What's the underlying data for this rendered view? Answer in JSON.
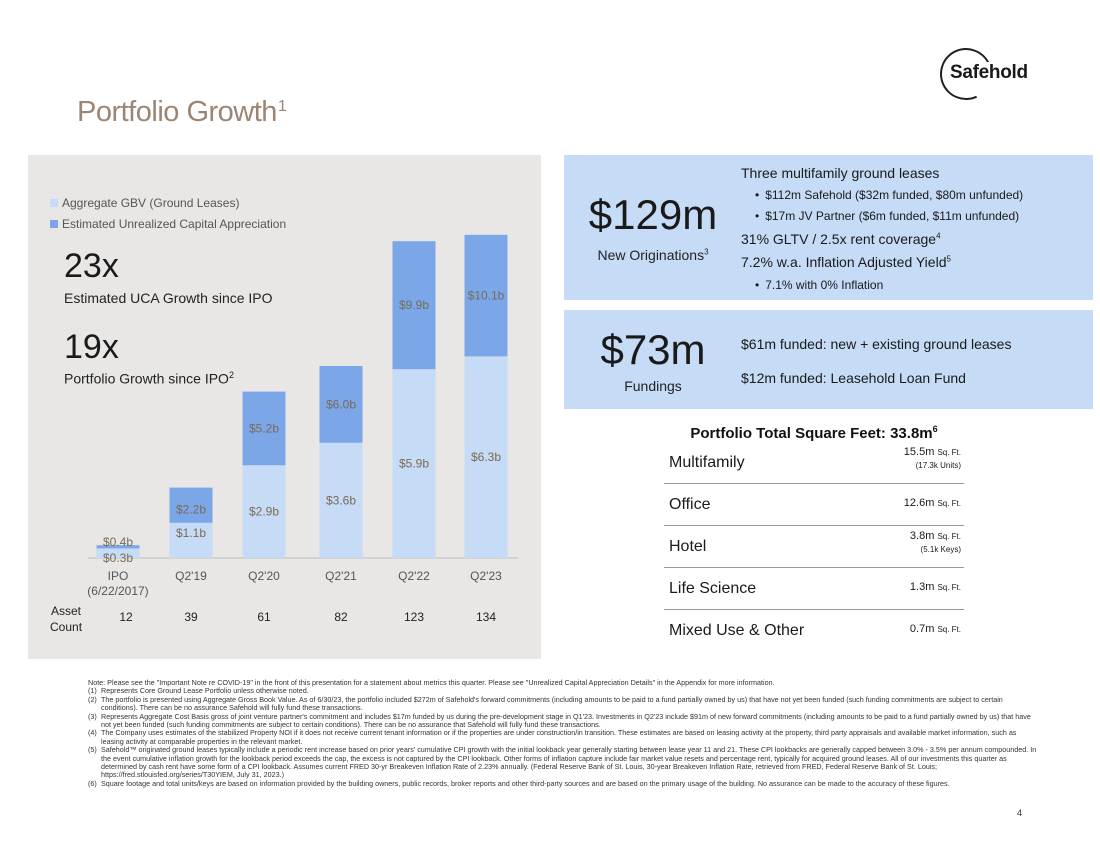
{
  "logo": {
    "text": "Safehold"
  },
  "title": {
    "text": "Portfolio Growth",
    "sup": "1"
  },
  "legend": [
    {
      "label": "Aggregate GBV (Ground Leases)",
      "color": "#c6dbf6"
    },
    {
      "label": "Estimated Unrealized Capital Appreciation",
      "color": "#7ba7e9"
    }
  ],
  "stats": [
    {
      "value": "23x",
      "label": "Estimated UCA Growth since IPO",
      "sup": ""
    },
    {
      "value": "19x",
      "label": "Portfolio Growth since IPO",
      "sup": "2"
    }
  ],
  "chart_data": {
    "type": "bar",
    "stacked": true,
    "categories": [
      "IPO\n(6/22/2017)",
      "Q2'19",
      "Q2'20",
      "Q2'21",
      "Q2'22",
      "Q2'23"
    ],
    "series": [
      {
        "name": "Aggregate GBV (Ground Leases)",
        "color": "#c6dbf6",
        "values": [
          0.3,
          1.1,
          2.9,
          3.6,
          5.9,
          6.3
        ],
        "labels": [
          "$0.3b",
          "$1.1b",
          "$2.9b",
          "$3.6b",
          "$5.9b",
          "$6.3b"
        ]
      },
      {
        "name": "Estimated Unrealized Capital Appreciation",
        "color": "#7ba7e9",
        "values": [
          0.1,
          1.1,
          2.3,
          2.4,
          4.0,
          3.8
        ],
        "labels": [
          "$0.4b",
          "$2.2b",
          "$5.2b",
          "$6.0b",
          "$9.9b",
          "$10.1b"
        ]
      }
    ],
    "asset_count_label": "Asset\nCount",
    "asset_counts": [
      "12",
      "39",
      "61",
      "82",
      "123",
      "134"
    ],
    "ylim": [
      0,
      10.5
    ]
  },
  "originations": {
    "big": "$129m",
    "sub": "New Originations",
    "sub_sup": "3",
    "headline": "Three multifamily ground leases",
    "bullets": [
      "$112m Safehold ($32m funded, $80m unfunded)",
      "$17m JV Partner ($6m funded, $11m unfunded)"
    ],
    "line1": "31% GLTV / 2.5x rent coverage",
    "line1_sup": "4",
    "line2": "7.2% w.a. Inflation Adjusted Yield",
    "line2_sup": "5",
    "bullet3": "7.1% with 0% Inflation"
  },
  "fundings": {
    "big": "$73m",
    "sub": "Fundings",
    "line1": "$61m funded: new + existing ground leases",
    "line2": "$12m funded: Leasehold Loan Fund"
  },
  "sqft": {
    "title": "Portfolio Total Square Feet: 33.8m",
    "title_sup": "6",
    "rows": [
      {
        "name": "Multifamily",
        "value": "15.5m",
        "unit": "Sq. Ft.",
        "sub": "(17.3k Units)"
      },
      {
        "name": "Office",
        "value": "12.6m",
        "unit": "Sq. Ft.",
        "sub": ""
      },
      {
        "name": "Hotel",
        "value": "3.8m",
        "unit": "Sq. Ft.",
        "sub": "(5.1k Keys)"
      },
      {
        "name": "Life Science",
        "value": "1.3m",
        "unit": "Sq. Ft.",
        "sub": ""
      },
      {
        "name": "Mixed Use & Other",
        "value": "0.7m",
        "unit": "Sq. Ft.",
        "sub": ""
      }
    ]
  },
  "notes": {
    "intro": "Note: Please see the \"Important Note re COVID-19\" in the front of this presentation for a statement about metrics this quarter. Please see \"Unrealized Capital Appreciation Details\" in the Appendix for more information.",
    "items": [
      {
        "num": "(1)",
        "text": "Represents Core Ground Lease Portfolio unless otherwise noted."
      },
      {
        "num": "(2)",
        "text": "The portfolio is presented using Aggregate Gross Book Value. As of 6/30/23, the portfolio included $272m of Safehold's forward commitments (including amounts to be paid to a fund partially owned by us) that have not yet been funded (such funding commitments are subject to certain conditions). There can be no assurance Safehold will fully fund these transactions."
      },
      {
        "num": "(3)",
        "text": "Represents Aggregate Cost Basis gross of joint venture partner's commitment and includes $17m funded by us during the pre-development stage in Q1'23. Investments in Q2'23 include $91m of new forward commitments (including amounts to be paid to a fund partially owned by us) that have not yet been funded (such funding commitments are subject to certain conditions). There can be no assurance that Safehold will fully fund these transactions."
      },
      {
        "num": "(4)",
        "text": "The Company uses estimates of the stabilized Property NOI if it does not receive current tenant information or if the properties are under construction/in transition. These estimates are based on leasing activity at the property, third party appraisals and available market information, such as leasing activity at comparable properties in the relevant market."
      },
      {
        "num": "(5)",
        "text": "Safehold™ originated ground leases typically include a periodic rent increase based on prior years' cumulative CPI growth with the initial lookback year generally starting between lease year 11 and 21. These CPI lookbacks are generally capped between 3.0% - 3.5% per annum compounded. In the event cumulative inflation growth for the lookback period exceeds the cap, the excess is not captured by the CPI lookback. Other forms of inflation capture include fair market value resets and percentage rent, typically for acquired ground leases. All of our investments this quarter as determined by cash rent have some form of a CPI lookback. Assumes current FRED 30-yr Breakeven Inflation Rate of 2.23% annually. (Federal Reserve Bank of St. Louis, 30-year Breakeven Inflation Rate, retrieved from FRED, Federal Reserve Bank of St. Louis; https://fred.stlouisfed.org/series/T30YIEM, July 31, 2023.)"
      },
      {
        "num": "(6)",
        "text": "Square footage and total units/keys are based on information provided by the building owners, public records, broker reports and other third-party sources and are based on the primary usage of the building. No assurance can be made to the accuracy of these figures."
      }
    ]
  },
  "page_number": "4"
}
